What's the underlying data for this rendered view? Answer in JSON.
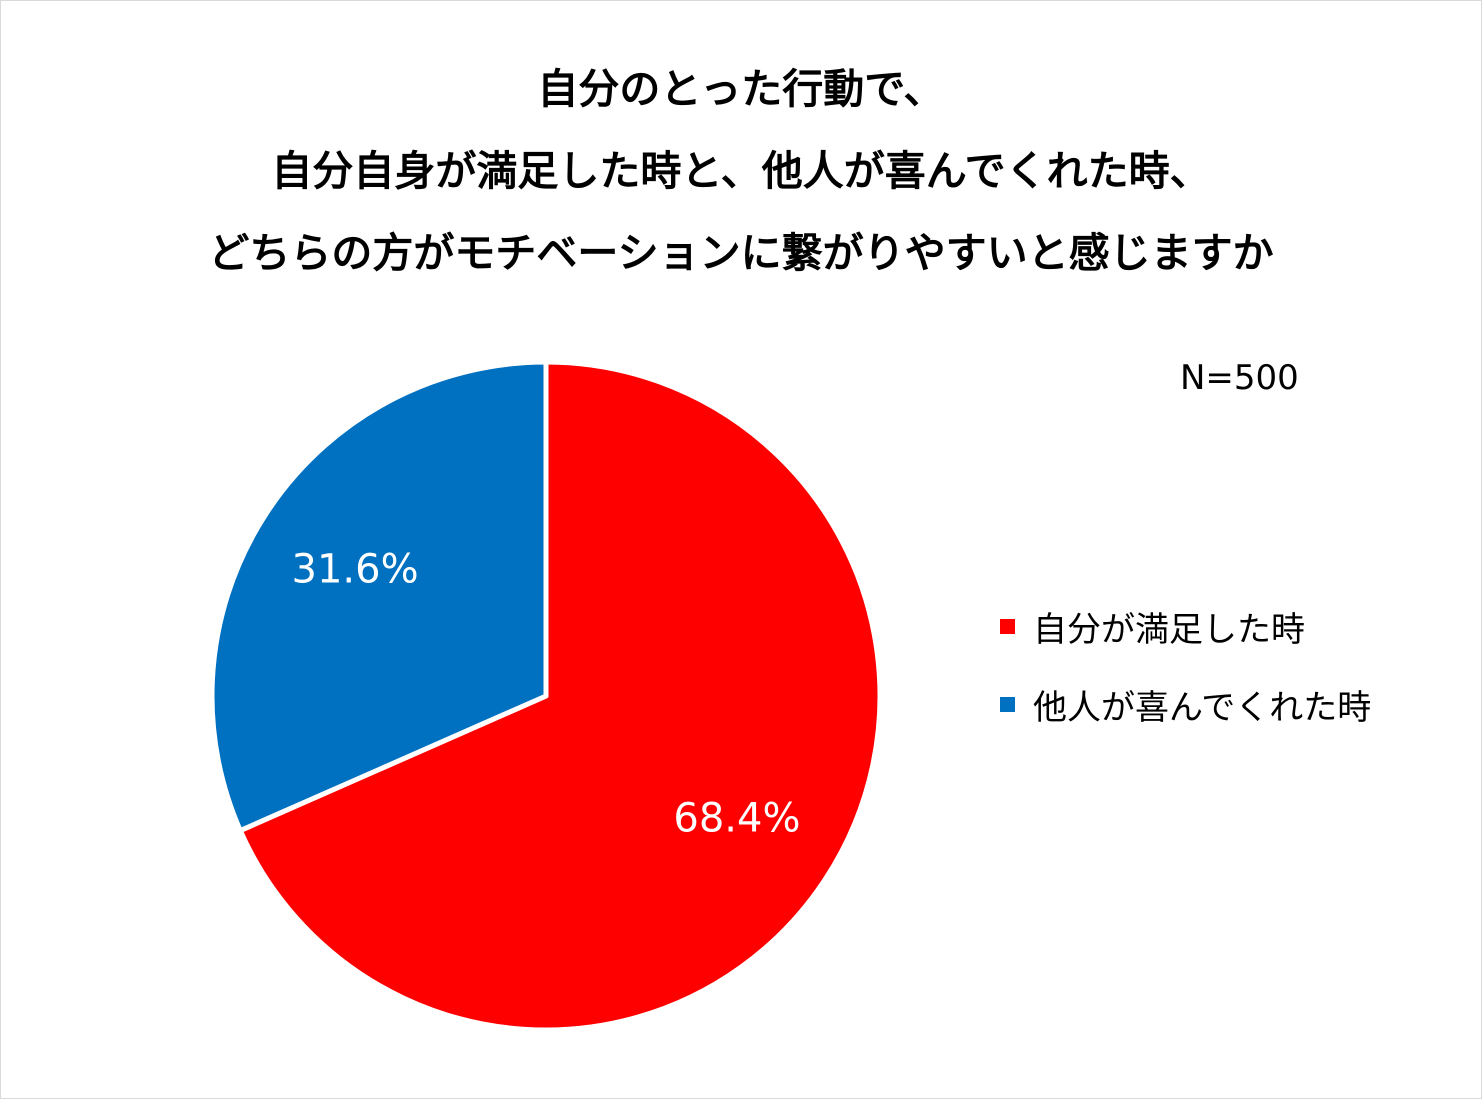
{
  "chart_data": {
    "type": "pie",
    "title_lines": [
      "自分のとった行動で、",
      "自分自身が満足した時と、他人が喜んでくれた時、",
      "どちらの方がモチベーションに繋がりやすいと感じますか"
    ],
    "note": "N=500",
    "slices": [
      {
        "name": "自分が満足した時",
        "value": 68.4,
        "label": "68.4%",
        "color": "#ff0000"
      },
      {
        "name": "他人が喜んでくれた時",
        "value": 31.6,
        "label": "31.6%",
        "color": "#0070c0"
      }
    ],
    "start_angle_deg": 0,
    "direction": "clockwise",
    "legend_position": "right"
  }
}
